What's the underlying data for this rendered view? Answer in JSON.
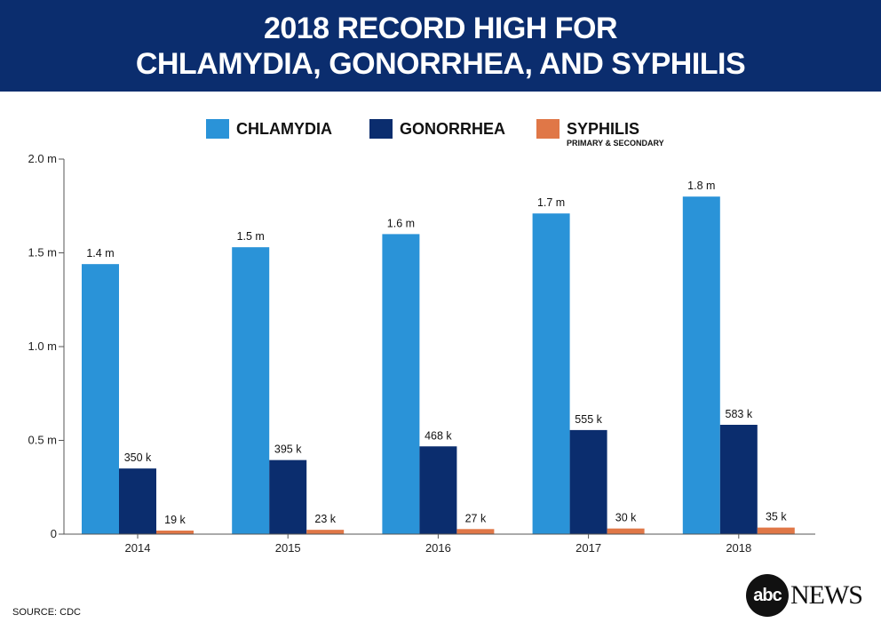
{
  "header": {
    "title_line1": "2018 RECORD HIGH FOR",
    "title_line2": "CHLAMYDIA, GONORRHEA, AND SYPHILIS"
  },
  "legend": [
    {
      "label": "CHLAMYDIA",
      "sub": "",
      "color": "#2a93d8"
    },
    {
      "label": "GONORRHEA",
      "sub": "",
      "color": "#0b2d6e"
    },
    {
      "label": "SYPHILIS",
      "sub": "PRIMARY & SECONDARY",
      "color": "#e07747"
    }
  ],
  "chart_data": {
    "type": "bar",
    "categories": [
      "2014",
      "2015",
      "2016",
      "2017",
      "2018"
    ],
    "series": [
      {
        "name": "CHLAMYDIA",
        "color": "#2a93d8",
        "values": [
          1.44,
          1.53,
          1.6,
          1.71,
          1.8
        ],
        "labels": [
          "1.4 m",
          "1.5 m",
          "1.6 m",
          "1.7 m",
          "1.8 m"
        ]
      },
      {
        "name": "GONORRHEA",
        "color": "#0b2d6e",
        "values": [
          0.35,
          0.395,
          0.468,
          0.555,
          0.583
        ],
        "labels": [
          "350 k",
          "395 k",
          "468 k",
          "555 k",
          "583 k"
        ]
      },
      {
        "name": "SYPHILIS",
        "color": "#e07747",
        "values": [
          0.019,
          0.023,
          0.027,
          0.03,
          0.035
        ],
        "labels": [
          "19 k",
          "23 k",
          "27 k",
          "30 k",
          "35 k"
        ]
      }
    ],
    "ylim": [
      0,
      2.0
    ],
    "yticks": [
      {
        "value": 0,
        "label": "0"
      },
      {
        "value": 0.5,
        "label": "0.5 m"
      },
      {
        "value": 1.0,
        "label": "1.0 m"
      },
      {
        "value": 1.5,
        "label": "1.5 m"
      },
      {
        "value": 2.0,
        "label": "2.0 m"
      }
    ],
    "grid": false,
    "legend_position": "top"
  },
  "footer": {
    "source": "SOURCE: CDC",
    "logo_abc": "abc",
    "logo_news": "NEWS"
  }
}
